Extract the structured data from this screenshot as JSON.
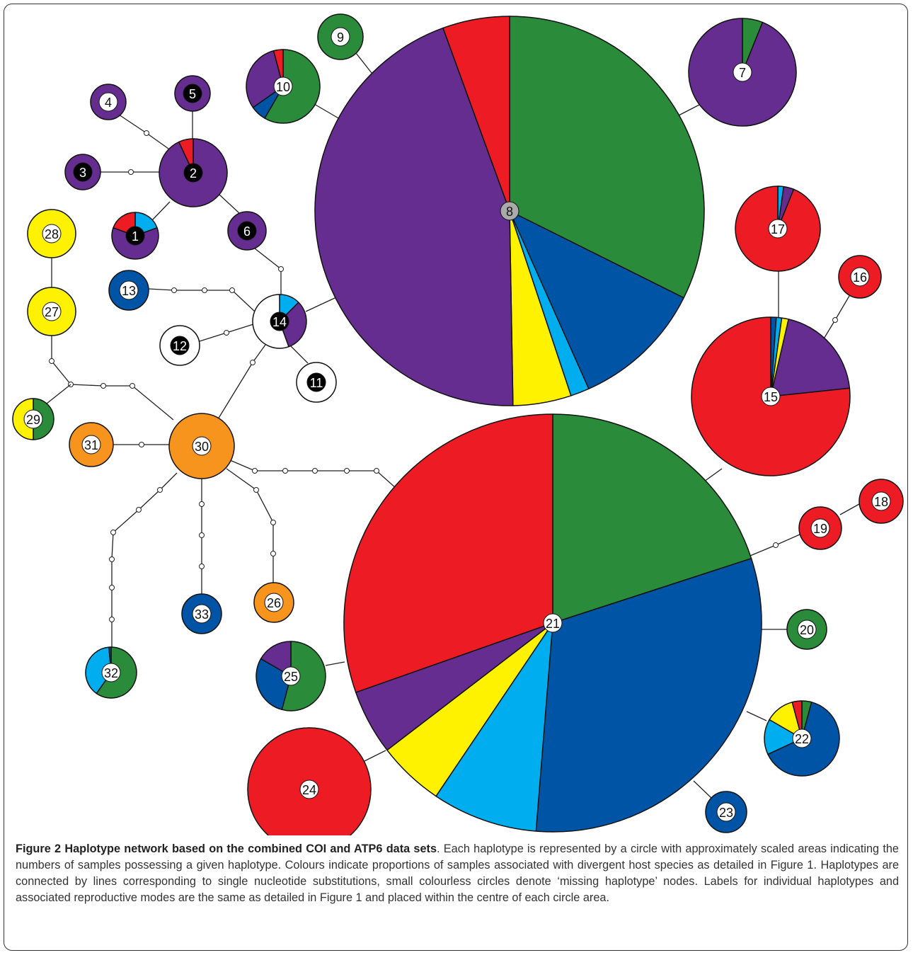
{
  "nodes": [
    {
      "label": "1"
    },
    {
      "label": "2"
    },
    {
      "label": "3"
    },
    {
      "label": "4"
    },
    {
      "label": "5"
    },
    {
      "label": "6"
    },
    {
      "label": "7"
    },
    {
      "label": "8"
    },
    {
      "label": "9"
    },
    {
      "label": "10"
    },
    {
      "label": "11"
    },
    {
      "label": "12"
    },
    {
      "label": "13"
    },
    {
      "label": "14"
    },
    {
      "label": "15"
    },
    {
      "label": "16"
    },
    {
      "label": "17"
    },
    {
      "label": "18"
    },
    {
      "label": "19"
    },
    {
      "label": "20"
    },
    {
      "label": "21"
    },
    {
      "label": "22"
    },
    {
      "label": "23"
    },
    {
      "label": "24"
    },
    {
      "label": "25"
    },
    {
      "label": "26"
    },
    {
      "label": "27"
    },
    {
      "label": "28"
    },
    {
      "label": "29"
    },
    {
      "label": "30"
    },
    {
      "label": "31"
    },
    {
      "label": "32"
    },
    {
      "label": "33"
    }
  ],
  "caption": {
    "title": "Figure 2 Haplotype network based on the combined COI and ATP6 data sets",
    "text": ". Each haplotype is represented by a circle with approximately scaled areas indicating the numbers of samples possessing a given haplotype. Colours indicate proportions of samples associated with divergent host species as detailed in Figure 1. Haplotypes are connected by lines corresponding to single nucleotide substitutions, small colourless circles denote ‘missing haplotype’ nodes. Labels for individual haplotypes and associated reproductive modes are the same as detailed in Figure 1 and placed within the centre of each circle area."
  }
}
